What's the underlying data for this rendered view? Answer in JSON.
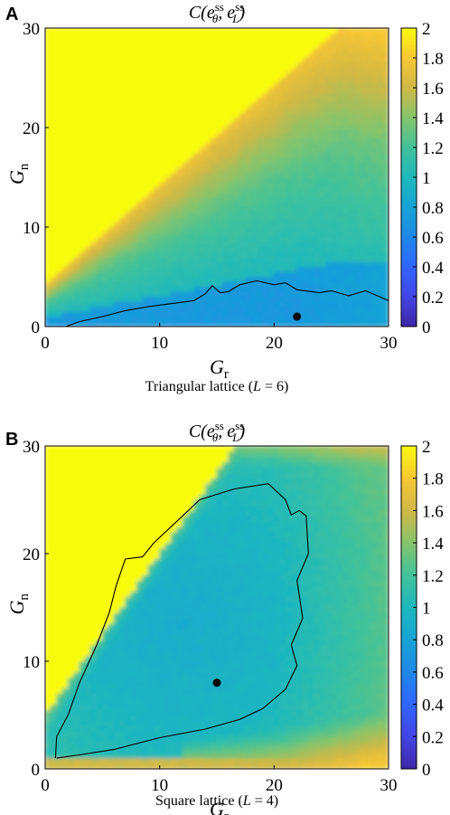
{
  "chart_data": [
    {
      "panel": "A",
      "type": "heatmap",
      "title_math": {
        "fn": "C",
        "a_base": "e",
        "a_sup": "ss",
        "a_sub": "θ",
        "b_base": "e",
        "b_sup": "ss",
        "b_sub": "L"
      },
      "xlabel": {
        "base": "G",
        "sub": "r"
      },
      "ylabel": {
        "base": "G",
        "sub": "n"
      },
      "caption_parts": [
        "Triangular lattice (",
        "L",
        " = 6)"
      ],
      "xlim": [
        0,
        30
      ],
      "ylim": [
        0,
        30
      ],
      "x_ticks": [
        0,
        10,
        20,
        30
      ],
      "y_ticks": [
        0,
        10,
        20,
        30
      ],
      "colorbar": {
        "range": [
          0,
          2
        ],
        "ticks": [
          0,
          0.2,
          0.4,
          0.6,
          0.8,
          1,
          1.2,
          1.4,
          1.6,
          1.8,
          2
        ],
        "tick_labels": [
          "0",
          "0.2",
          "0.4",
          "0.6",
          "0.8",
          "1",
          "1.2",
          "1.4",
          "1.6",
          "1.8",
          "2"
        ],
        "colormap": "parula"
      },
      "contour_level": 1,
      "contour": [
        [
          1.8,
          0
        ],
        [
          3,
          0.5
        ],
        [
          5,
          1
        ],
        [
          7,
          1.6
        ],
        [
          9,
          2
        ],
        [
          11,
          2.3
        ],
        [
          13,
          2.6
        ],
        [
          14,
          3.3
        ],
        [
          14.6,
          4.1
        ],
        [
          15.3,
          3.4
        ],
        [
          16,
          3.5
        ],
        [
          17,
          4.2
        ],
        [
          18.5,
          4.6
        ],
        [
          20,
          4.2
        ],
        [
          21,
          4.4
        ],
        [
          22,
          3.7
        ],
        [
          24,
          3.4
        ],
        [
          25,
          3.6
        ],
        [
          26.5,
          3.1
        ],
        [
          28,
          3.6
        ],
        [
          30,
          2.6
        ]
      ],
      "marker": {
        "x": 22,
        "y": 1
      },
      "field": "triangular"
    },
    {
      "panel": "B",
      "type": "heatmap",
      "title_math": {
        "fn": "C",
        "a_base": "e",
        "a_sup": "ss",
        "a_sub": "θ",
        "b_base": "e",
        "b_sup": "ss",
        "b_sub": "L"
      },
      "xlabel": {
        "base": "G",
        "sub": "r"
      },
      "ylabel": {
        "base": "G",
        "sub": "n"
      },
      "caption_parts": [
        "Square lattice (",
        "L",
        " = 4)"
      ],
      "xlim": [
        0,
        30
      ],
      "ylim": [
        0,
        30
      ],
      "x_ticks": [
        0,
        10,
        20,
        30
      ],
      "y_ticks": [
        0,
        10,
        20,
        30
      ],
      "colorbar": {
        "range": [
          0,
          2
        ],
        "ticks": [
          0,
          0.2,
          0.4,
          0.6,
          0.8,
          1,
          1.2,
          1.4,
          1.6,
          1.8,
          2
        ],
        "tick_labels": [
          "0",
          "0.2",
          "0.4",
          "0.6",
          "0.8",
          "1",
          "1.2",
          "1.4",
          "1.6",
          "1.8",
          "2"
        ],
        "colormap": "parula"
      },
      "contour_level": 1,
      "contour": [
        [
          1,
          1
        ],
        [
          3,
          1.3
        ],
        [
          6,
          1.8
        ],
        [
          10,
          2.9
        ],
        [
          14,
          3.7
        ],
        [
          17,
          4.6
        ],
        [
          19,
          5.6
        ],
        [
          21,
          7.4
        ],
        [
          22,
          9.6
        ],
        [
          21.5,
          11.5
        ],
        [
          22.5,
          14
        ],
        [
          22,
          17.5
        ],
        [
          23,
          20
        ],
        [
          22.8,
          23.5
        ],
        [
          22.2,
          24
        ],
        [
          21.5,
          23.6
        ],
        [
          21,
          25
        ],
        [
          19.5,
          26.5
        ],
        [
          16.5,
          26
        ],
        [
          13.5,
          25
        ],
        [
          11,
          22.5
        ],
        [
          9.5,
          21
        ],
        [
          8.5,
          19.7
        ],
        [
          7,
          19.5
        ],
        [
          6.2,
          17
        ],
        [
          5.6,
          14.5
        ],
        [
          4.5,
          11.5
        ],
        [
          3,
          8
        ],
        [
          2,
          5
        ],
        [
          1,
          3
        ],
        [
          0.9,
          1
        ]
      ],
      "marker": {
        "x": 15,
        "y": 8
      },
      "field": "square"
    }
  ]
}
